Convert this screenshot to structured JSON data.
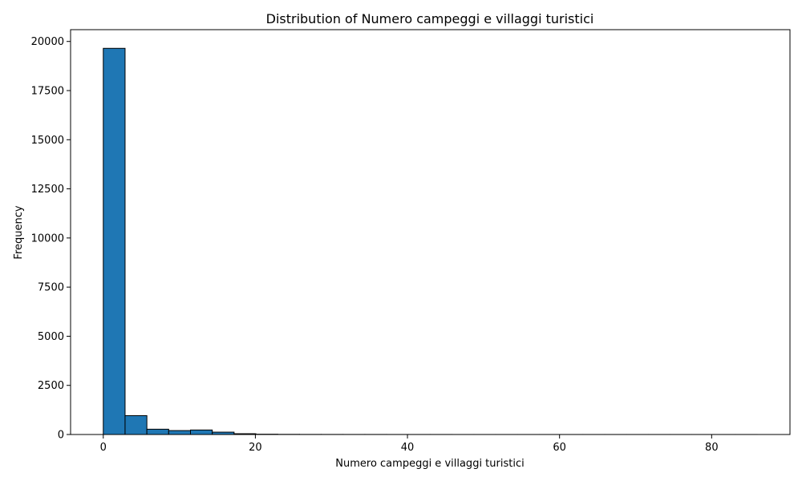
{
  "chart_data": {
    "type": "bar",
    "subtype": "histogram",
    "title": "Distribution of Numero campeggi e villaggi turistici",
    "xlabel": "Numero campeggi e villaggi turistici",
    "ylabel": "Frequency",
    "xlim": [
      -4.3,
      90.3
    ],
    "ylim": [
      0,
      20600
    ],
    "x_ticks": [
      0,
      20,
      40,
      60,
      80
    ],
    "y_ticks": [
      0,
      2500,
      5000,
      7500,
      10000,
      12500,
      15000,
      17500,
      20000
    ],
    "bin_start": 0,
    "bin_width": 2.8667,
    "bins": 30,
    "values": [
      19650,
      960,
      270,
      200,
      230,
      120,
      40,
      15,
      8,
      5,
      4,
      3,
      3,
      2,
      2,
      2,
      1,
      1,
      1,
      1,
      1,
      1,
      1,
      1,
      1,
      1,
      1,
      1,
      1,
      1
    ],
    "bar_color": "#1f77b4",
    "edge_color": "#000000",
    "grid": false,
    "legend": "none"
  }
}
